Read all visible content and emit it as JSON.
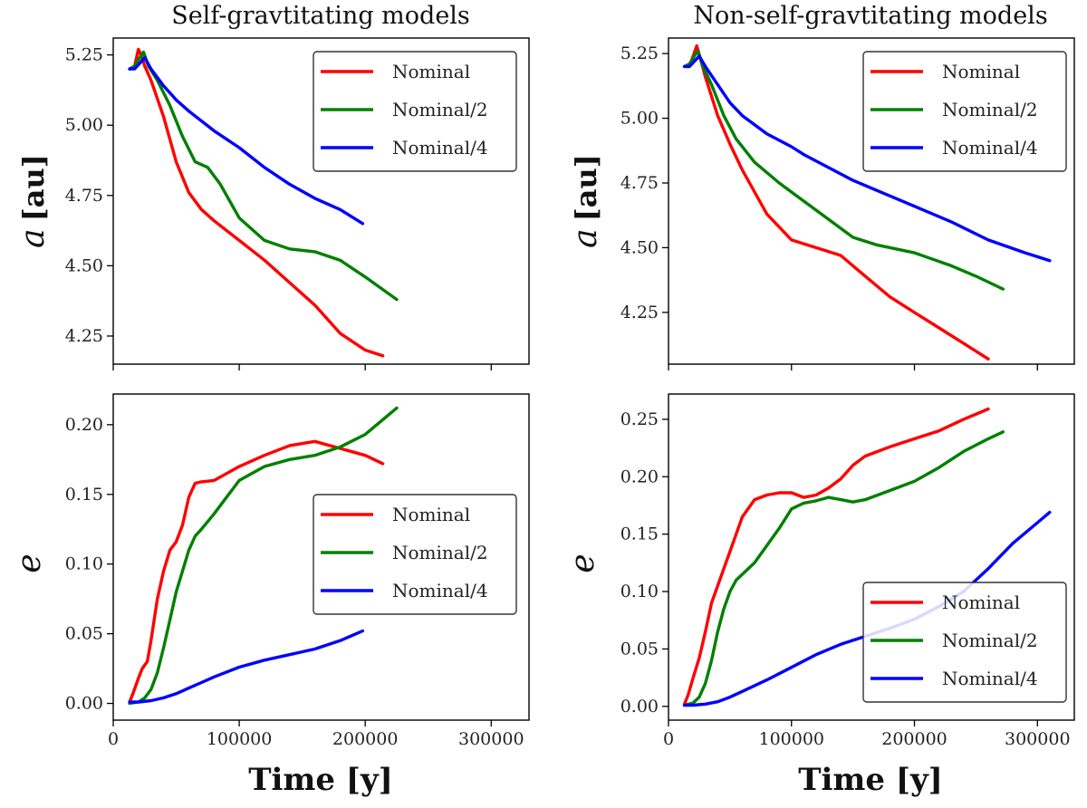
{
  "chart_data": [
    {
      "id": "sg-a",
      "type": "line",
      "title": "Self-gravtitating models",
      "xlabel": "",
      "ylabel": "a",
      "ylabel_unit": "[au]",
      "xlim": [
        0,
        330000
      ],
      "ylim": [
        4.15,
        5.31
      ],
      "xticks": [
        0,
        100000,
        200000,
        300000
      ],
      "xticklabels_visible": false,
      "yticks": [
        4.25,
        4.5,
        4.75,
        5.0,
        5.25
      ],
      "yticklabels": [
        "4.25",
        "4.50",
        "4.75",
        "5.00",
        "5.25"
      ],
      "legend": "top-right",
      "series": [
        {
          "name": "Nominal",
          "color": "#ff0000",
          "x": [
            13000,
            17000,
            20000,
            22000,
            25000,
            30000,
            40000,
            50000,
            60000,
            70000,
            80000,
            100000,
            120000,
            140000,
            160000,
            180000,
            200000,
            214000
          ],
          "y": [
            5.2,
            5.21,
            5.27,
            5.25,
            5.21,
            5.16,
            5.03,
            4.87,
            4.76,
            4.7,
            4.66,
            4.59,
            4.52,
            4.44,
            4.36,
            4.26,
            4.2,
            4.18
          ]
        },
        {
          "name": "Nominal/2",
          "color": "#008000",
          "x": [
            13000,
            17000,
            21000,
            24000,
            28000,
            35000,
            45000,
            55000,
            65000,
            75000,
            85000,
            100000,
            120000,
            140000,
            160000,
            180000,
            200000,
            225000
          ],
          "y": [
            5.2,
            5.21,
            5.24,
            5.26,
            5.21,
            5.16,
            5.07,
            4.96,
            4.87,
            4.85,
            4.79,
            4.67,
            4.59,
            4.56,
            4.55,
            4.52,
            4.46,
            4.38
          ]
        },
        {
          "name": "Nominal/4",
          "color": "#0000ff",
          "x": [
            13000,
            17000,
            21000,
            25000,
            30000,
            40000,
            50000,
            60000,
            80000,
            100000,
            120000,
            140000,
            160000,
            180000,
            198000
          ],
          "y": [
            5.2,
            5.2,
            5.22,
            5.24,
            5.2,
            5.14,
            5.09,
            5.05,
            4.98,
            4.92,
            4.85,
            4.79,
            4.74,
            4.7,
            4.65
          ]
        }
      ]
    },
    {
      "id": "nsg-a",
      "type": "line",
      "title": "Non-self-gravtitating models",
      "xlabel": "",
      "ylabel": "a",
      "ylabel_unit": "[au]",
      "xlim": [
        0,
        330000
      ],
      "ylim": [
        4.05,
        5.31
      ],
      "xticks": [
        0,
        100000,
        200000,
        300000
      ],
      "xticklabels_visible": false,
      "yticks": [
        4.25,
        4.5,
        4.75,
        5.0,
        5.25
      ],
      "yticklabels": [
        "4.25",
        "4.50",
        "4.75",
        "5.00",
        "5.25"
      ],
      "legend": "top-right",
      "series": [
        {
          "name": "Nominal",
          "color": "#ff0000",
          "x": [
            13000,
            17000,
            20000,
            23000,
            26000,
            30000,
            40000,
            50000,
            60000,
            80000,
            100000,
            120000,
            140000,
            160000,
            180000,
            200000,
            220000,
            240000,
            260000
          ],
          "y": [
            5.2,
            5.2,
            5.24,
            5.28,
            5.23,
            5.16,
            5.01,
            4.9,
            4.8,
            4.63,
            4.53,
            4.5,
            4.47,
            4.39,
            4.31,
            4.25,
            4.19,
            4.13,
            4.07
          ]
        },
        {
          "name": "Nominal/2",
          "color": "#008000",
          "x": [
            13000,
            17000,
            21000,
            24000,
            28000,
            35000,
            45000,
            55000,
            70000,
            90000,
            110000,
            130000,
            150000,
            170000,
            200000,
            230000,
            250000,
            272000
          ],
          "y": [
            5.2,
            5.21,
            5.24,
            5.26,
            5.2,
            5.13,
            5.01,
            4.92,
            4.83,
            4.75,
            4.68,
            4.61,
            4.54,
            4.51,
            4.48,
            4.43,
            4.39,
            4.34
          ]
        },
        {
          "name": "Nominal/4",
          "color": "#0000ff",
          "x": [
            13000,
            17000,
            21000,
            25000,
            30000,
            40000,
            50000,
            60000,
            80000,
            100000,
            110000,
            130000,
            150000,
            170000,
            200000,
            230000,
            260000,
            290000,
            310000
          ],
          "y": [
            5.2,
            5.2,
            5.22,
            5.24,
            5.2,
            5.13,
            5.06,
            5.01,
            4.94,
            4.89,
            4.86,
            4.81,
            4.76,
            4.72,
            4.66,
            4.6,
            4.53,
            4.48,
            4.45
          ]
        }
      ]
    },
    {
      "id": "sg-e",
      "type": "line",
      "title": "",
      "xlabel": "Time [y]",
      "ylabel": "e",
      "ylabel_unit": "",
      "xlim": [
        0,
        330000
      ],
      "ylim": [
        -0.012,
        0.222
      ],
      "xticks": [
        0,
        100000,
        200000,
        300000
      ],
      "xticklabels": [
        "0",
        "100000",
        "200000",
        "300000"
      ],
      "xticklabels_visible": true,
      "yticks": [
        0.0,
        0.05,
        0.1,
        0.15,
        0.2
      ],
      "yticklabels": [
        "0.00",
        "0.05",
        "0.10",
        "0.15",
        "0.20"
      ],
      "legend": "right",
      "series": [
        {
          "name": "Nominal",
          "color": "#ff0000",
          "x": [
            13000,
            16000,
            20000,
            23000,
            27000,
            30000,
            35000,
            40000,
            45000,
            50000,
            55000,
            60000,
            65000,
            70000,
            80000,
            90000,
            100000,
            120000,
            140000,
            160000,
            180000,
            200000,
            214000
          ],
          "y": [
            0.001,
            0.008,
            0.018,
            0.025,
            0.03,
            0.045,
            0.075,
            0.095,
            0.11,
            0.116,
            0.128,
            0.148,
            0.158,
            0.159,
            0.16,
            0.165,
            0.17,
            0.178,
            0.185,
            0.188,
            0.183,
            0.178,
            0.172
          ]
        },
        {
          "name": "Nominal/2",
          "color": "#008000",
          "x": [
            13000,
            20000,
            25000,
            30000,
            35000,
            40000,
            45000,
            50000,
            55000,
            60000,
            65000,
            70000,
            80000,
            90000,
            100000,
            120000,
            140000,
            160000,
            180000,
            200000,
            225000
          ],
          "y": [
            0.0,
            0.001,
            0.004,
            0.01,
            0.022,
            0.04,
            0.06,
            0.08,
            0.095,
            0.11,
            0.12,
            0.125,
            0.136,
            0.148,
            0.16,
            0.17,
            0.175,
            0.178,
            0.184,
            0.193,
            0.212
          ]
        },
        {
          "name": "Nominal/4",
          "color": "#0000ff",
          "x": [
            13000,
            20000,
            30000,
            40000,
            50000,
            60000,
            70000,
            80000,
            100000,
            120000,
            140000,
            160000,
            180000,
            198000
          ],
          "y": [
            0.001,
            0.001,
            0.002,
            0.004,
            0.007,
            0.011,
            0.015,
            0.019,
            0.026,
            0.031,
            0.035,
            0.039,
            0.045,
            0.052
          ]
        }
      ]
    },
    {
      "id": "nsg-e",
      "type": "line",
      "title": "",
      "xlabel": "Time [y]",
      "ylabel": "e",
      "ylabel_unit": "",
      "xlim": [
        0,
        330000
      ],
      "ylim": [
        -0.012,
        0.272
      ],
      "xticks": [
        0,
        100000,
        200000,
        300000
      ],
      "xticklabels": [
        "0",
        "100000",
        "200000",
        "300000"
      ],
      "xticklabels_visible": true,
      "yticks": [
        0.0,
        0.05,
        0.1,
        0.15,
        0.2,
        0.25
      ],
      "yticklabels": [
        "0.00",
        "0.05",
        "0.10",
        "0.15",
        "0.20",
        "0.25"
      ],
      "legend": "lower-right",
      "series": [
        {
          "name": "Nominal",
          "color": "#ff0000",
          "x": [
            13000,
            16000,
            20000,
            25000,
            30000,
            35000,
            40000,
            50000,
            60000,
            70000,
            80000,
            90000,
            100000,
            110000,
            120000,
            130000,
            140000,
            150000,
            160000,
            180000,
            200000,
            220000,
            240000,
            260000
          ],
          "y": [
            0.002,
            0.01,
            0.025,
            0.042,
            0.065,
            0.09,
            0.105,
            0.135,
            0.165,
            0.18,
            0.184,
            0.186,
            0.186,
            0.182,
            0.184,
            0.19,
            0.198,
            0.21,
            0.218,
            0.226,
            0.233,
            0.24,
            0.25,
            0.259
          ]
        },
        {
          "name": "Nominal/2",
          "color": "#008000",
          "x": [
            13000,
            20000,
            25000,
            30000,
            35000,
            40000,
            45000,
            50000,
            55000,
            60000,
            70000,
            80000,
            90000,
            100000,
            110000,
            120000,
            130000,
            140000,
            150000,
            160000,
            180000,
            200000,
            220000,
            240000,
            260000,
            272000
          ],
          "y": [
            0.001,
            0.003,
            0.008,
            0.02,
            0.04,
            0.065,
            0.085,
            0.1,
            0.11,
            0.115,
            0.125,
            0.14,
            0.155,
            0.172,
            0.177,
            0.179,
            0.182,
            0.18,
            0.178,
            0.18,
            0.188,
            0.196,
            0.208,
            0.222,
            0.233,
            0.239
          ]
        },
        {
          "name": "Nominal/4",
          "color": "#0000ff",
          "x": [
            13000,
            20000,
            30000,
            40000,
            50000,
            60000,
            80000,
            100000,
            120000,
            140000,
            160000,
            180000,
            200000,
            220000,
            240000,
            260000,
            280000,
            300000,
            310000
          ],
          "y": [
            0.001,
            0.001,
            0.002,
            0.004,
            0.008,
            0.013,
            0.023,
            0.034,
            0.045,
            0.054,
            0.061,
            0.068,
            0.076,
            0.087,
            0.1,
            0.12,
            0.142,
            0.16,
            0.169
          ]
        }
      ]
    }
  ]
}
